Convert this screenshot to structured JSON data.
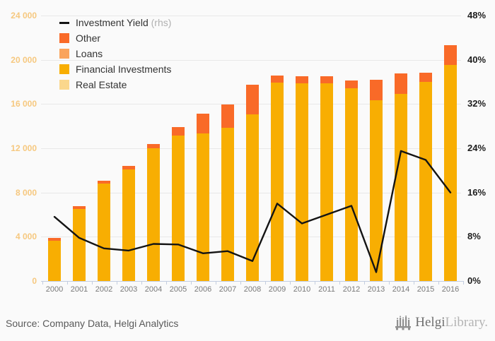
{
  "chart_data": {
    "type": "bar",
    "subtype": "stacked-bar-with-line",
    "categories": [
      "2000",
      "2001",
      "2002",
      "2003",
      "2004",
      "2005",
      "2006",
      "2007",
      "2008",
      "2009",
      "2010",
      "2011",
      "2012",
      "2013",
      "2014",
      "2015",
      "2016"
    ],
    "series": [
      {
        "name": "Real Estate",
        "type": "bar",
        "color": "#fad78c",
        "values": [
          0,
          0,
          0,
          0,
          0,
          0,
          0,
          0,
          0,
          0,
          0,
          0,
          0,
          0,
          0,
          0,
          0
        ]
      },
      {
        "name": "Financial Investments",
        "type": "bar",
        "color": "#f8ae02",
        "values": [
          3650,
          6500,
          8800,
          10100,
          12000,
          13150,
          13350,
          13850,
          15050,
          17950,
          17900,
          17900,
          17400,
          16350,
          16900,
          18000,
          19550
        ]
      },
      {
        "name": "Loans",
        "type": "bar",
        "color": "#faa45c",
        "values": [
          0,
          0,
          0,
          0,
          0,
          0,
          0,
          0,
          0,
          0,
          0,
          0,
          0,
          0,
          0,
          0,
          0
        ]
      },
      {
        "name": "Other",
        "type": "bar",
        "color": "#f96a28",
        "values": [
          250,
          250,
          250,
          300,
          400,
          750,
          1750,
          2100,
          2700,
          650,
          600,
          600,
          750,
          1850,
          1850,
          850,
          1750
        ]
      },
      {
        "name": "Investment Yield",
        "type": "line",
        "axis": "right",
        "color": "#141414",
        "values": [
          11.6,
          7.8,
          5.9,
          5.5,
          6.7,
          6.6,
          5.0,
          5.4,
          3.6,
          14.0,
          10.4,
          12.0,
          13.6,
          1.6,
          23.5,
          21.9,
          16.0
        ]
      }
    ],
    "left_axis": {
      "min": 0,
      "max": 24000,
      "tick_step": 4000,
      "tick_labels": [
        "0",
        "4 000",
        "8 000",
        "12 000",
        "16 000",
        "20 000",
        "24 000"
      ]
    },
    "right_axis": {
      "min": 0,
      "max": 48,
      "tick_step": 8,
      "tick_labels": [
        "0%",
        "8%",
        "16%",
        "24%",
        "32%",
        "40%",
        "48%"
      ]
    },
    "grid": true,
    "legend_position": "top-left"
  },
  "legend": {
    "items": [
      {
        "label": "Investment Yield",
        "suffix": " (rhs)",
        "swatch": "line",
        "color": "#141414"
      },
      {
        "label": "Other",
        "suffix": "",
        "swatch": "box",
        "color": "#f96a28"
      },
      {
        "label": "Loans",
        "suffix": "",
        "swatch": "box",
        "color": "#faa45c"
      },
      {
        "label": "Financial Investments",
        "suffix": "",
        "swatch": "box",
        "color": "#f8ae02"
      },
      {
        "label": "Real Estate",
        "suffix": "",
        "swatch": "box",
        "color": "#fad78c"
      }
    ]
  },
  "footer": {
    "source": "Source: Company Data, Helgi Analytics",
    "logo_primary": "Helgi",
    "logo_secondary": "Library."
  }
}
